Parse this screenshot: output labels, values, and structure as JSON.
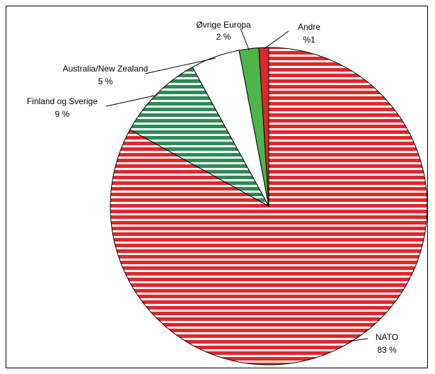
{
  "chart_data": {
    "type": "pie",
    "title": "",
    "slices": [
      {
        "label": "NATO",
        "value_label": "83 %",
        "value": 83,
        "color": "#e3262b",
        "pattern": "horizontal-stripes"
      },
      {
        "label": "Finland og Sverige",
        "value_label": "9 %",
        "value": 9,
        "color": "#2e8b57",
        "pattern": "horizontal-stripes"
      },
      {
        "label": "Australia/New Zealand",
        "value_label": "5 %",
        "value": 5,
        "color": "#ffffff",
        "pattern": "solid"
      },
      {
        "label": "Øvrige Europa",
        "value_label": "2 %",
        "value": 2,
        "color": "#4cb648",
        "pattern": "solid"
      },
      {
        "label": "Andre",
        "value_label": "%1",
        "value": 1,
        "color": "#e3262b",
        "pattern": "solid"
      }
    ]
  }
}
